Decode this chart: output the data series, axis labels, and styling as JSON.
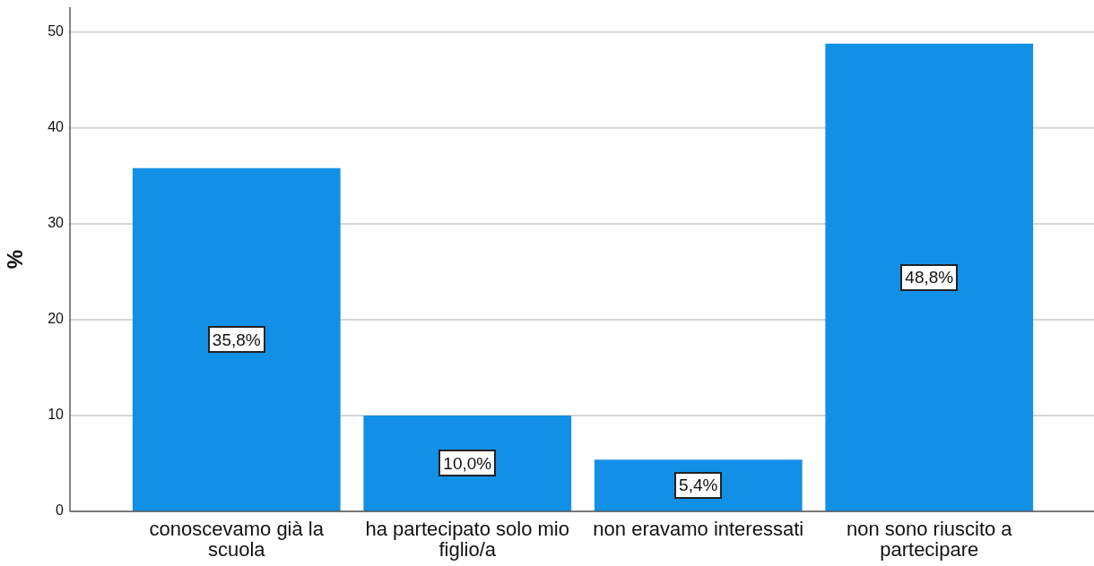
{
  "chart_data": {
    "type": "bar",
    "ylabel": "%",
    "categories": [
      "conoscevamo già la scuola",
      "ha partecipato solo mio figlio/a",
      "non eravamo interessati",
      "non sono riuscito a partecipare"
    ],
    "values": [
      35.8,
      10.0,
      5.4,
      48.8
    ],
    "value_labels": [
      "35,8%",
      "10,0%",
      "5,4%",
      "48,8%"
    ],
    "color": "#1290e6",
    "ylim": [
      0,
      52.6
    ],
    "yticks": [
      0,
      10,
      20,
      30,
      40,
      50
    ],
    "grid": "y"
  }
}
